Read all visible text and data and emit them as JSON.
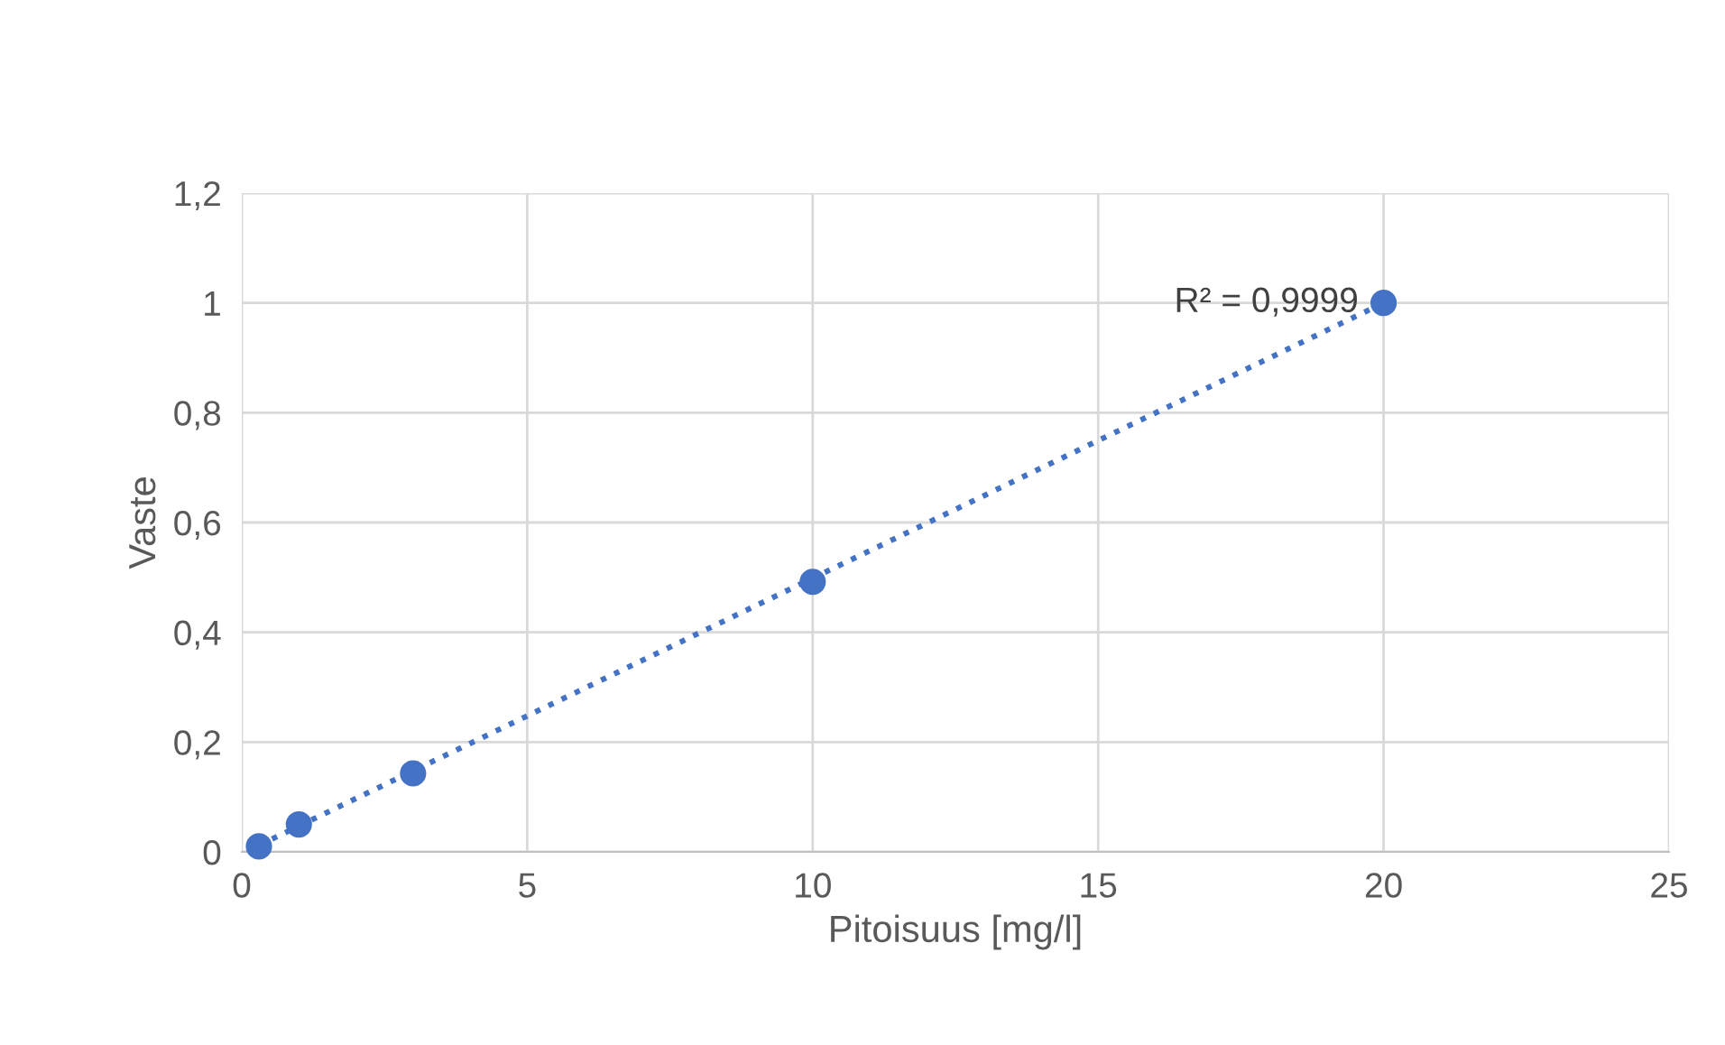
{
  "chart_data": {
    "type": "scatter",
    "xlabel": "Pitoisuus [mg/l]",
    "ylabel": "Vaste",
    "series": [
      {
        "color": "#4472c4",
        "x": [
          0.3,
          1,
          3,
          10,
          20
        ],
        "values": [
          0.01,
          0.05,
          0.143,
          0.492,
          1.0
        ],
        "marker": "circle"
      },
      {
        "type": "line",
        "color": "#4472c4",
        "x": [
          0.3,
          20
        ],
        "values": [
          0.012,
          1.0
        ],
        "line_style": "dotted"
      }
    ],
    "annotations": [
      {
        "text": "R² = 0,9999",
        "x": 20,
        "y": 1.0
      }
    ],
    "xlim": [
      0,
      25
    ],
    "xticks": [
      0,
      5,
      10,
      15,
      20,
      25
    ],
    "ylim": [
      0,
      1.2
    ],
    "yticks": [
      0,
      {
        "value": 0.2,
        "label": "0,2"
      },
      {
        "value": 0.4,
        "label": "0,4"
      },
      {
        "value": 0.6,
        "label": "0,6"
      },
      {
        "value": 0.8,
        "label": "0,8"
      },
      1,
      {
        "value": 1.2,
        "label": "1,2"
      }
    ],
    "grid": true,
    "legend": false
  }
}
